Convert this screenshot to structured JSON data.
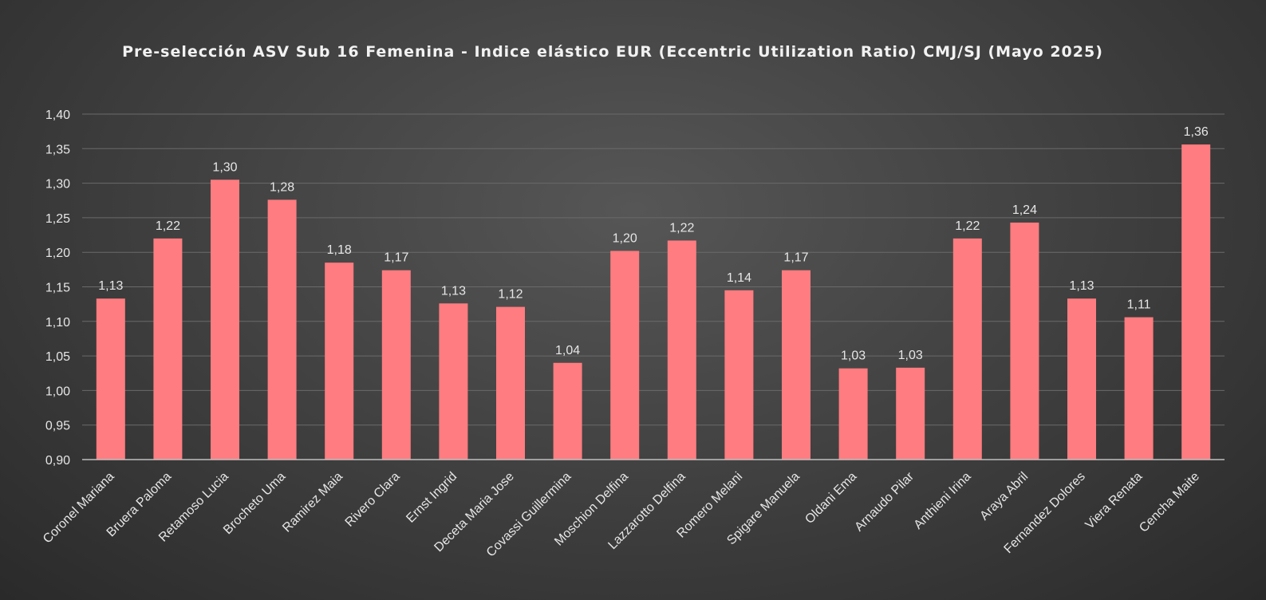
{
  "chart_data": {
    "type": "bar",
    "title": "Pre-selección ASV Sub 16 Femenina - Indice elástico EUR (Eccentric Utilization Ratio) CMJ/SJ (Mayo 2025)",
    "categories": [
      "Coronel Mariana",
      "Bruera Paloma",
      "Retamoso Lucia",
      "Brocheto Uma",
      "Ramirez Maia",
      "Rivero Clara",
      "Ernst Ingrid",
      "Deceta Maria Jose",
      "Covassi Guillermina",
      "Moschion Delfina",
      "Lazzarotto Delfina",
      "Romero Melani",
      "Spigare Manuela",
      "Oldani Ema",
      "Arnaudo Pilar",
      "Anthieni Irina",
      "Araya Abril",
      "Fernandez Dolores",
      "Viera Renata",
      "Cencha Maite"
    ],
    "values": [
      1.133,
      1.22,
      1.305,
      1.276,
      1.185,
      1.174,
      1.126,
      1.121,
      1.04,
      1.202,
      1.217,
      1.145,
      1.174,
      1.032,
      1.033,
      1.22,
      1.243,
      1.133,
      1.106,
      1.356
    ],
    "value_labels": [
      "1,13",
      "1,22",
      "1,30",
      "1,28",
      "1,18",
      "1,17",
      "1,13",
      "1,12",
      "1,04",
      "1,20",
      "1,22",
      "1,14",
      "1,17",
      "1,03",
      "1,03",
      "1,22",
      "1,24",
      "1,13",
      "1,11",
      "1,36"
    ],
    "y_ticks": [
      0.9,
      0.95,
      1.0,
      1.05,
      1.1,
      1.15,
      1.2,
      1.25,
      1.3,
      1.35,
      1.4
    ],
    "y_tick_labels": [
      "0,90",
      "0,95",
      "1,00",
      "1,05",
      "1,10",
      "1,15",
      "1,20",
      "1,25",
      "1,30",
      "1,35",
      "1,40"
    ],
    "ylim": [
      0.9,
      1.4
    ],
    "grid": true,
    "legend": "none",
    "colors": {
      "bar": "#ff7c80",
      "grid": "#6a6a6a",
      "axis": "#bfbfbf"
    }
  }
}
